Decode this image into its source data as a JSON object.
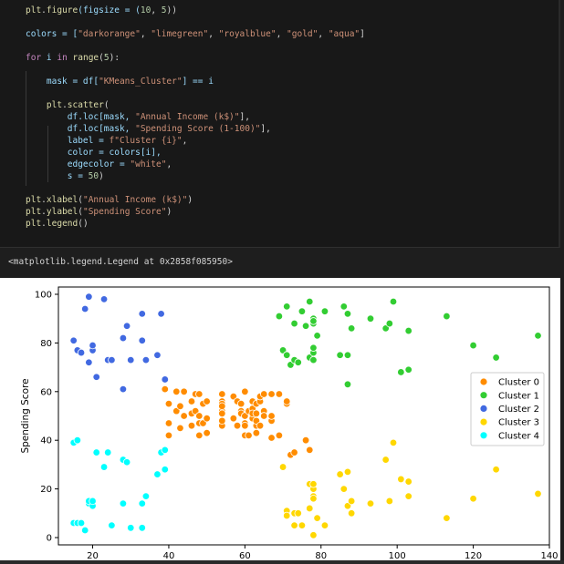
{
  "code_cell": {
    "lines": [
      [
        [
          "plt",
          ".figure",
          "("
        ],
        [
          "figsize"
        ],
        [
          " = ("
        ],
        [
          "10",
          ", ",
          "5"
        ],
        [
          ")"
        ]
      ],
      [],
      [
        [
          "colors",
          " = ["
        ],
        [
          "\"darkorange\"",
          ", ",
          "\"limegreen\"",
          ", ",
          "\"royalblue\"",
          ", ",
          "\"gold\"",
          ", ",
          "\"aqua\""
        ],
        [
          "]"
        ]
      ],
      [],
      [
        [
          "for",
          " i ",
          "in",
          " ",
          "range",
          "(",
          "5",
          "):"
        ]
      ],
      [],
      [
        [
          "    ",
          "mask",
          " = df[",
          "\"KMeans_Cluster\"",
          "] == i"
        ]
      ],
      [],
      [
        [
          "    ",
          "plt",
          ".scatter",
          "("
        ]
      ],
      [
        [
          "        ",
          "df.loc[mask, ",
          "\"Annual Income (k$)\"",
          "],"
        ]
      ],
      [
        [
          "        ",
          "df.loc[mask, ",
          "\"Spending Score (1-100)\"",
          "],"
        ]
      ],
      [
        [
          "        ",
          "label",
          " = ",
          "f\"Cluster {i}\"",
          ","
        ]
      ],
      [
        [
          "        ",
          "color",
          " = colors[i],"
        ]
      ],
      [
        [
          "        ",
          "edgecolor",
          " = ",
          "\"white\"",
          ","
        ]
      ],
      [
        [
          "        ",
          "s",
          " = ",
          "50",
          ")"
        ]
      ],
      [],
      [
        [
          "plt",
          ".xlabel(",
          "\"Annual Income (k$)\"",
          ")"
        ]
      ],
      [
        [
          "plt",
          ".ylabel(",
          "\"Spending Score\"",
          ")"
        ]
      ],
      [
        [
          "plt",
          ".legend()"
        ]
      ]
    ],
    "text": [
      "plt.figure(figsize = (10, 5))",
      "",
      "colors = [\"darkorange\", \"limegreen\", \"royalblue\", \"gold\", \"aqua\"]",
      "",
      "for i in range(5):",
      "",
      "    mask = df[\"KMeans_Cluster\"] == i",
      "",
      "    plt.scatter(",
      "        df.loc[mask, \"Annual Income (k$)\"],",
      "        df.loc[mask, \"Spending Score (1-100)\"],",
      "        label = f\"Cluster {i}\",",
      "        color = colors[i],",
      "        edgecolor = \"white\",",
      "        s = 50)",
      "",
      "plt.xlabel(\"Annual Income (k$)\")",
      "plt.ylabel(\"Spending Score\")",
      "plt.legend()"
    ]
  },
  "output_text": "<matplotlib.legend.Legend at 0x2858f085950>",
  "colors": {
    "background": "#1e1e1e",
    "code_bg": "#181818",
    "keyword": "#c586c0",
    "function": "#dcdcaa",
    "string": "#ce9178",
    "number": "#b5cea8",
    "variable": "#9cdcfe",
    "plain": "#d4d4d4"
  },
  "chart_data": {
    "type": "scatter",
    "xlabel": "Annual Income (k$)",
    "ylabel": "Spending Score",
    "xlim": [
      11,
      140
    ],
    "ylim": [
      -3,
      103
    ],
    "xticks": [
      20,
      40,
      60,
      80,
      100,
      120,
      140
    ],
    "yticks": [
      0,
      20,
      40,
      60,
      80,
      100
    ],
    "legend_position": "center-right",
    "series": [
      {
        "name": "Cluster 0",
        "color": "#ff8c00",
        "points": [
          [
            39,
            61
          ],
          [
            40,
            55
          ],
          [
            40,
            47
          ],
          [
            40,
            42
          ],
          [
            42,
            52
          ],
          [
            42,
            60
          ],
          [
            43,
            54
          ],
          [
            43,
            45
          ],
          [
            44,
            50
          ],
          [
            44,
            60
          ],
          [
            46,
            46
          ],
          [
            46,
            51
          ],
          [
            46,
            56
          ],
          [
            47,
            52
          ],
          [
            47,
            59
          ],
          [
            48,
            59
          ],
          [
            48,
            50
          ],
          [
            48,
            47
          ],
          [
            48,
            42
          ],
          [
            49,
            55
          ],
          [
            49,
            47
          ],
          [
            50,
            56
          ],
          [
            50,
            49
          ],
          [
            50,
            43
          ],
          [
            54,
            56
          ],
          [
            54,
            46
          ],
          [
            54,
            52
          ],
          [
            54,
            55
          ],
          [
            54,
            59
          ],
          [
            54,
            51
          ],
          [
            54,
            54
          ],
          [
            54,
            48
          ],
          [
            57,
            49
          ],
          [
            57,
            58
          ],
          [
            58,
            56
          ],
          [
            58,
            46
          ],
          [
            59,
            52
          ],
          [
            59,
            51
          ],
          [
            59,
            55
          ],
          [
            60,
            60
          ],
          [
            60,
            42
          ],
          [
            60,
            50
          ],
          [
            60,
            47
          ],
          [
            60,
            46
          ],
          [
            61,
            52
          ],
          [
            61,
            42
          ],
          [
            62,
            56
          ],
          [
            62,
            50
          ],
          [
            62,
            53
          ],
          [
            62,
            49
          ],
          [
            62,
            56
          ],
          [
            62,
            51
          ],
          [
            63,
            55
          ],
          [
            63,
            43
          ],
          [
            63,
            46
          ],
          [
            63,
            48
          ],
          [
            63,
            51
          ],
          [
            64,
            46
          ],
          [
            64,
            56
          ],
          [
            64,
            58
          ],
          [
            65,
            52
          ],
          [
            65,
            50
          ],
          [
            65,
            59
          ],
          [
            67,
            41
          ],
          [
            67,
            48
          ],
          [
            67,
            59
          ],
          [
            67,
            48
          ],
          [
            67,
            50
          ],
          [
            69,
            42
          ],
          [
            69,
            59
          ],
          [
            71,
            55
          ],
          [
            71,
            56
          ],
          [
            72,
            34
          ],
          [
            73,
            35
          ],
          [
            76,
            40
          ],
          [
            77,
            36
          ]
        ]
      },
      {
        "name": "Cluster 1",
        "color": "#32cd32",
        "points": [
          [
            69,
            91
          ],
          [
            70,
            77
          ],
          [
            71,
            95
          ],
          [
            71,
            75
          ],
          [
            71,
            75
          ],
          [
            72,
            71
          ],
          [
            73,
            88
          ],
          [
            73,
            73
          ],
          [
            74,
            72
          ],
          [
            75,
            93
          ],
          [
            76,
            87
          ],
          [
            77,
            97
          ],
          [
            77,
            74
          ],
          [
            78,
            90
          ],
          [
            78,
            88
          ],
          [
            78,
            76
          ],
          [
            78,
            89
          ],
          [
            78,
            78
          ],
          [
            78,
            73
          ],
          [
            79,
            83
          ],
          [
            81,
            93
          ],
          [
            85,
            75
          ],
          [
            86,
            95
          ],
          [
            87,
            63
          ],
          [
            87,
            75
          ],
          [
            87,
            92
          ],
          [
            88,
            86
          ],
          [
            93,
            90
          ],
          [
            97,
            86
          ],
          [
            98,
            88
          ],
          [
            99,
            97
          ],
          [
            101,
            68
          ],
          [
            103,
            85
          ],
          [
            103,
            69
          ],
          [
            113,
            91
          ],
          [
            120,
            79
          ],
          [
            126,
            74
          ],
          [
            137,
            83
          ]
        ]
      },
      {
        "name": "Cluster 2",
        "color": "#4169e1",
        "points": [
          [
            15,
            81
          ],
          [
            16,
            77
          ],
          [
            17,
            76
          ],
          [
            18,
            94
          ],
          [
            19,
            72
          ],
          [
            19,
            99
          ],
          [
            20,
            77
          ],
          [
            20,
            79
          ],
          [
            21,
            66
          ],
          [
            23,
            98
          ],
          [
            24,
            73
          ],
          [
            25,
            73
          ],
          [
            28,
            82
          ],
          [
            28,
            61
          ],
          [
            29,
            87
          ],
          [
            30,
            73
          ],
          [
            33,
            92
          ],
          [
            33,
            81
          ],
          [
            34,
            73
          ],
          [
            37,
            75
          ],
          [
            38,
            92
          ],
          [
            39,
            65
          ]
        ]
      },
      {
        "name": "Cluster 3",
        "color": "#ffd700",
        "points": [
          [
            70,
            29
          ],
          [
            71,
            11
          ],
          [
            71,
            9
          ],
          [
            73,
            5
          ],
          [
            73,
            10
          ],
          [
            74,
            10
          ],
          [
            75,
            5
          ],
          [
            77,
            12
          ],
          [
            77,
            22
          ],
          [
            78,
            17
          ],
          [
            78,
            20
          ],
          [
            78,
            16
          ],
          [
            78,
            1
          ],
          [
            78,
            22
          ],
          [
            79,
            8
          ],
          [
            81,
            5
          ],
          [
            85,
            26
          ],
          [
            86,
            20
          ],
          [
            87,
            27
          ],
          [
            87,
            13
          ],
          [
            88,
            15
          ],
          [
            88,
            10
          ],
          [
            93,
            14
          ],
          [
            97,
            32
          ],
          [
            98,
            15
          ],
          [
            99,
            39
          ],
          [
            101,
            24
          ],
          [
            103,
            23
          ],
          [
            103,
            17
          ],
          [
            113,
            8
          ],
          [
            120,
            16
          ],
          [
            126,
            28
          ],
          [
            137,
            18
          ]
        ]
      },
      {
        "name": "Cluster 4",
        "color": "#00ffff",
        "points": [
          [
            15,
            39
          ],
          [
            15,
            6
          ],
          [
            16,
            40
          ],
          [
            16,
            6
          ],
          [
            17,
            6
          ],
          [
            18,
            3
          ],
          [
            19,
            14
          ],
          [
            19,
            15
          ],
          [
            20,
            13
          ],
          [
            20,
            15
          ],
          [
            21,
            35
          ],
          [
            23,
            29
          ],
          [
            24,
            35
          ],
          [
            25,
            5
          ],
          [
            28,
            14
          ],
          [
            28,
            32
          ],
          [
            29,
            31
          ],
          [
            30,
            4
          ],
          [
            33,
            4
          ],
          [
            33,
            14
          ],
          [
            34,
            17
          ],
          [
            37,
            26
          ],
          [
            38,
            35
          ],
          [
            39,
            36
          ],
          [
            39,
            28
          ]
        ]
      }
    ]
  }
}
